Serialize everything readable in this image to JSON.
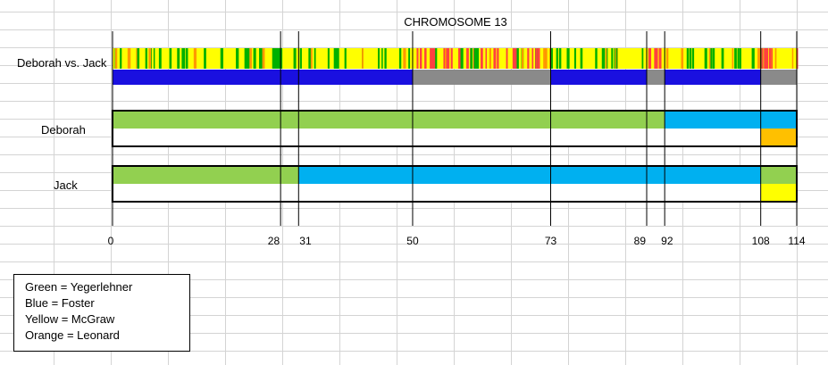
{
  "chart_data": {
    "type": "chromosome-browser",
    "title": "CHROMOSOME 13",
    "x_range": [
      0,
      114
    ],
    "x_ticks": [
      0,
      28,
      31,
      50,
      73,
      89,
      92,
      108,
      114
    ],
    "comparison": {
      "label": "Deborah vs. Jack",
      "match_segments": [
        {
          "start": 0,
          "end": 50,
          "type": "full"
        },
        {
          "start": 50,
          "end": 73,
          "type": "half"
        },
        {
          "start": 73,
          "end": 89,
          "type": "full"
        },
        {
          "start": 89,
          "end": 92,
          "type": "half"
        },
        {
          "start": 92,
          "end": 108,
          "type": "full"
        },
        {
          "start": 108,
          "end": 114,
          "type": "half"
        }
      ],
      "match_colors": {
        "full": "#1a10e0",
        "half": "#8a8a8a"
      }
    },
    "people": [
      {
        "name": "Deborah",
        "top": [
          {
            "start": 0,
            "end": 92,
            "color": "#92d050"
          },
          {
            "start": 92,
            "end": 114,
            "color": "#00b0f0"
          }
        ],
        "bottom": [
          {
            "start": 108,
            "end": 114,
            "color": "#ffc000"
          }
        ]
      },
      {
        "name": "Jack",
        "top": [
          {
            "start": 0,
            "end": 31,
            "color": "#92d050"
          },
          {
            "start": 31,
            "end": 108,
            "color": "#00b0f0"
          },
          {
            "start": 108,
            "end": 114,
            "color": "#92d050"
          }
        ],
        "bottom": [
          {
            "start": 108,
            "end": 114,
            "color": "#ffff00"
          }
        ]
      }
    ],
    "legend": [
      "Green = Yegerlehner",
      "Blue = Foster",
      "Yellow = McGraw",
      "Orange = Leonard"
    ],
    "colors": {
      "yellow": "#ffff00",
      "green": "#00b000",
      "red": "#ff4040",
      "orange": "#ff9900"
    }
  }
}
